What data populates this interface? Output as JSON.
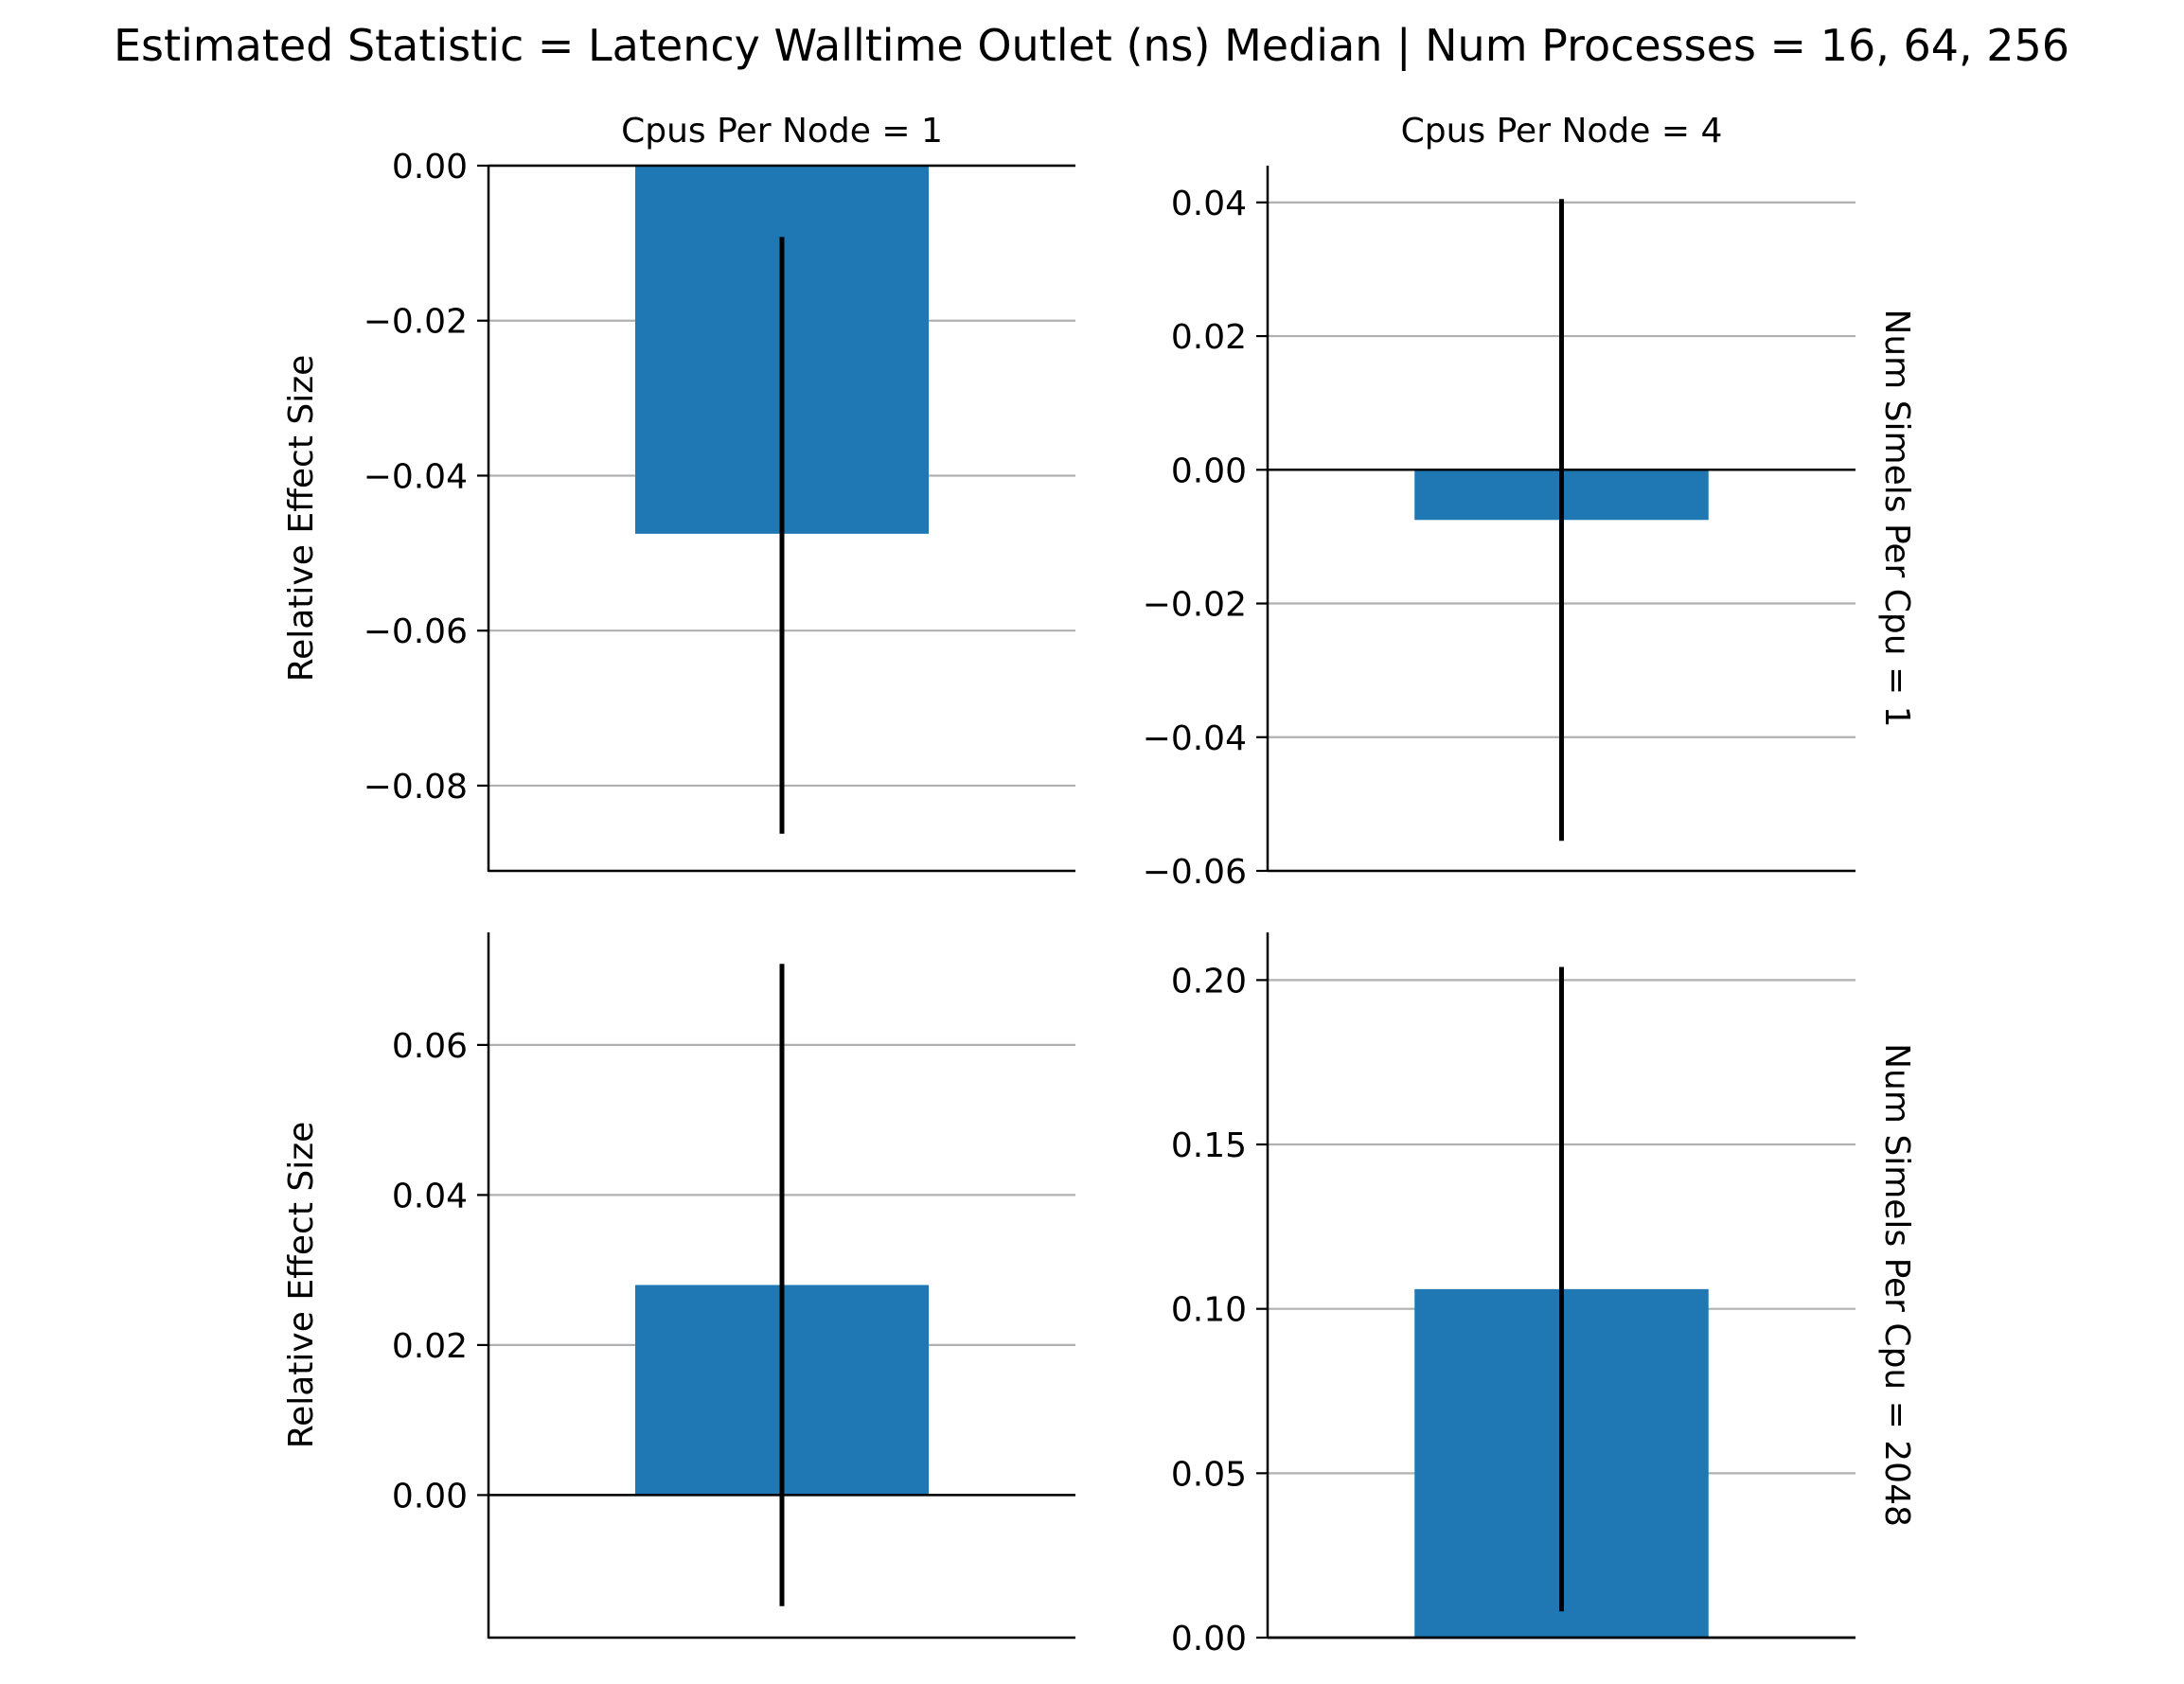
{
  "chart_data": {
    "type": "bar",
    "title": "Estimated Statistic = Latency Walltime Outlet (ns) Median | Num Processes = 16, 64, 256",
    "ylabel": "Relative Effect Size",
    "bar_color": "#1f77b4",
    "grid": "y",
    "panels": [
      {
        "col_title": "Cpus Per Node = 1",
        "row_title": "",
        "ylim": [
          -0.091,
          0.0
        ],
        "ticks": [
          0.0,
          -0.02,
          -0.04,
          -0.06,
          -0.08
        ],
        "tick_labels": [
          "0.00",
          "−0.02",
          "−0.04",
          "−0.06",
          "−0.08"
        ],
        "value": -0.0475,
        "ci": [
          -0.0862,
          -0.0092
        ]
      },
      {
        "col_title": "Cpus Per Node = 4",
        "row_title": "Num Simels Per Cpu = 1",
        "ylim": [
          -0.06,
          0.0455
        ],
        "ticks": [
          0.04,
          0.02,
          0.0,
          -0.02,
          -0.04,
          -0.06
        ],
        "tick_labels": [
          "0.04",
          "0.02",
          "0.00",
          "−0.02",
          "−0.04",
          "−0.06"
        ],
        "value": -0.0075,
        "ci": [
          -0.0555,
          0.0405
        ]
      },
      {
        "col_title": "",
        "row_title": "",
        "ylim": [
          -0.019,
          0.075
        ],
        "ticks": [
          0.06,
          0.04,
          0.02,
          0.0
        ],
        "tick_labels": [
          "0.06",
          "0.04",
          "0.02",
          "0.00"
        ],
        "value": 0.028,
        "ci": [
          -0.0148,
          0.0708
        ]
      },
      {
        "col_title": "",
        "row_title": "Num Simels Per Cpu = 2048",
        "ylim": [
          0.0,
          0.2145
        ],
        "ticks": [
          0.2,
          0.15,
          0.1,
          0.05,
          0.0
        ],
        "tick_labels": [
          "0.20",
          "0.15",
          "0.10",
          "0.05",
          "0.00"
        ],
        "value": 0.106,
        "ci": [
          0.008,
          0.204
        ]
      }
    ]
  }
}
